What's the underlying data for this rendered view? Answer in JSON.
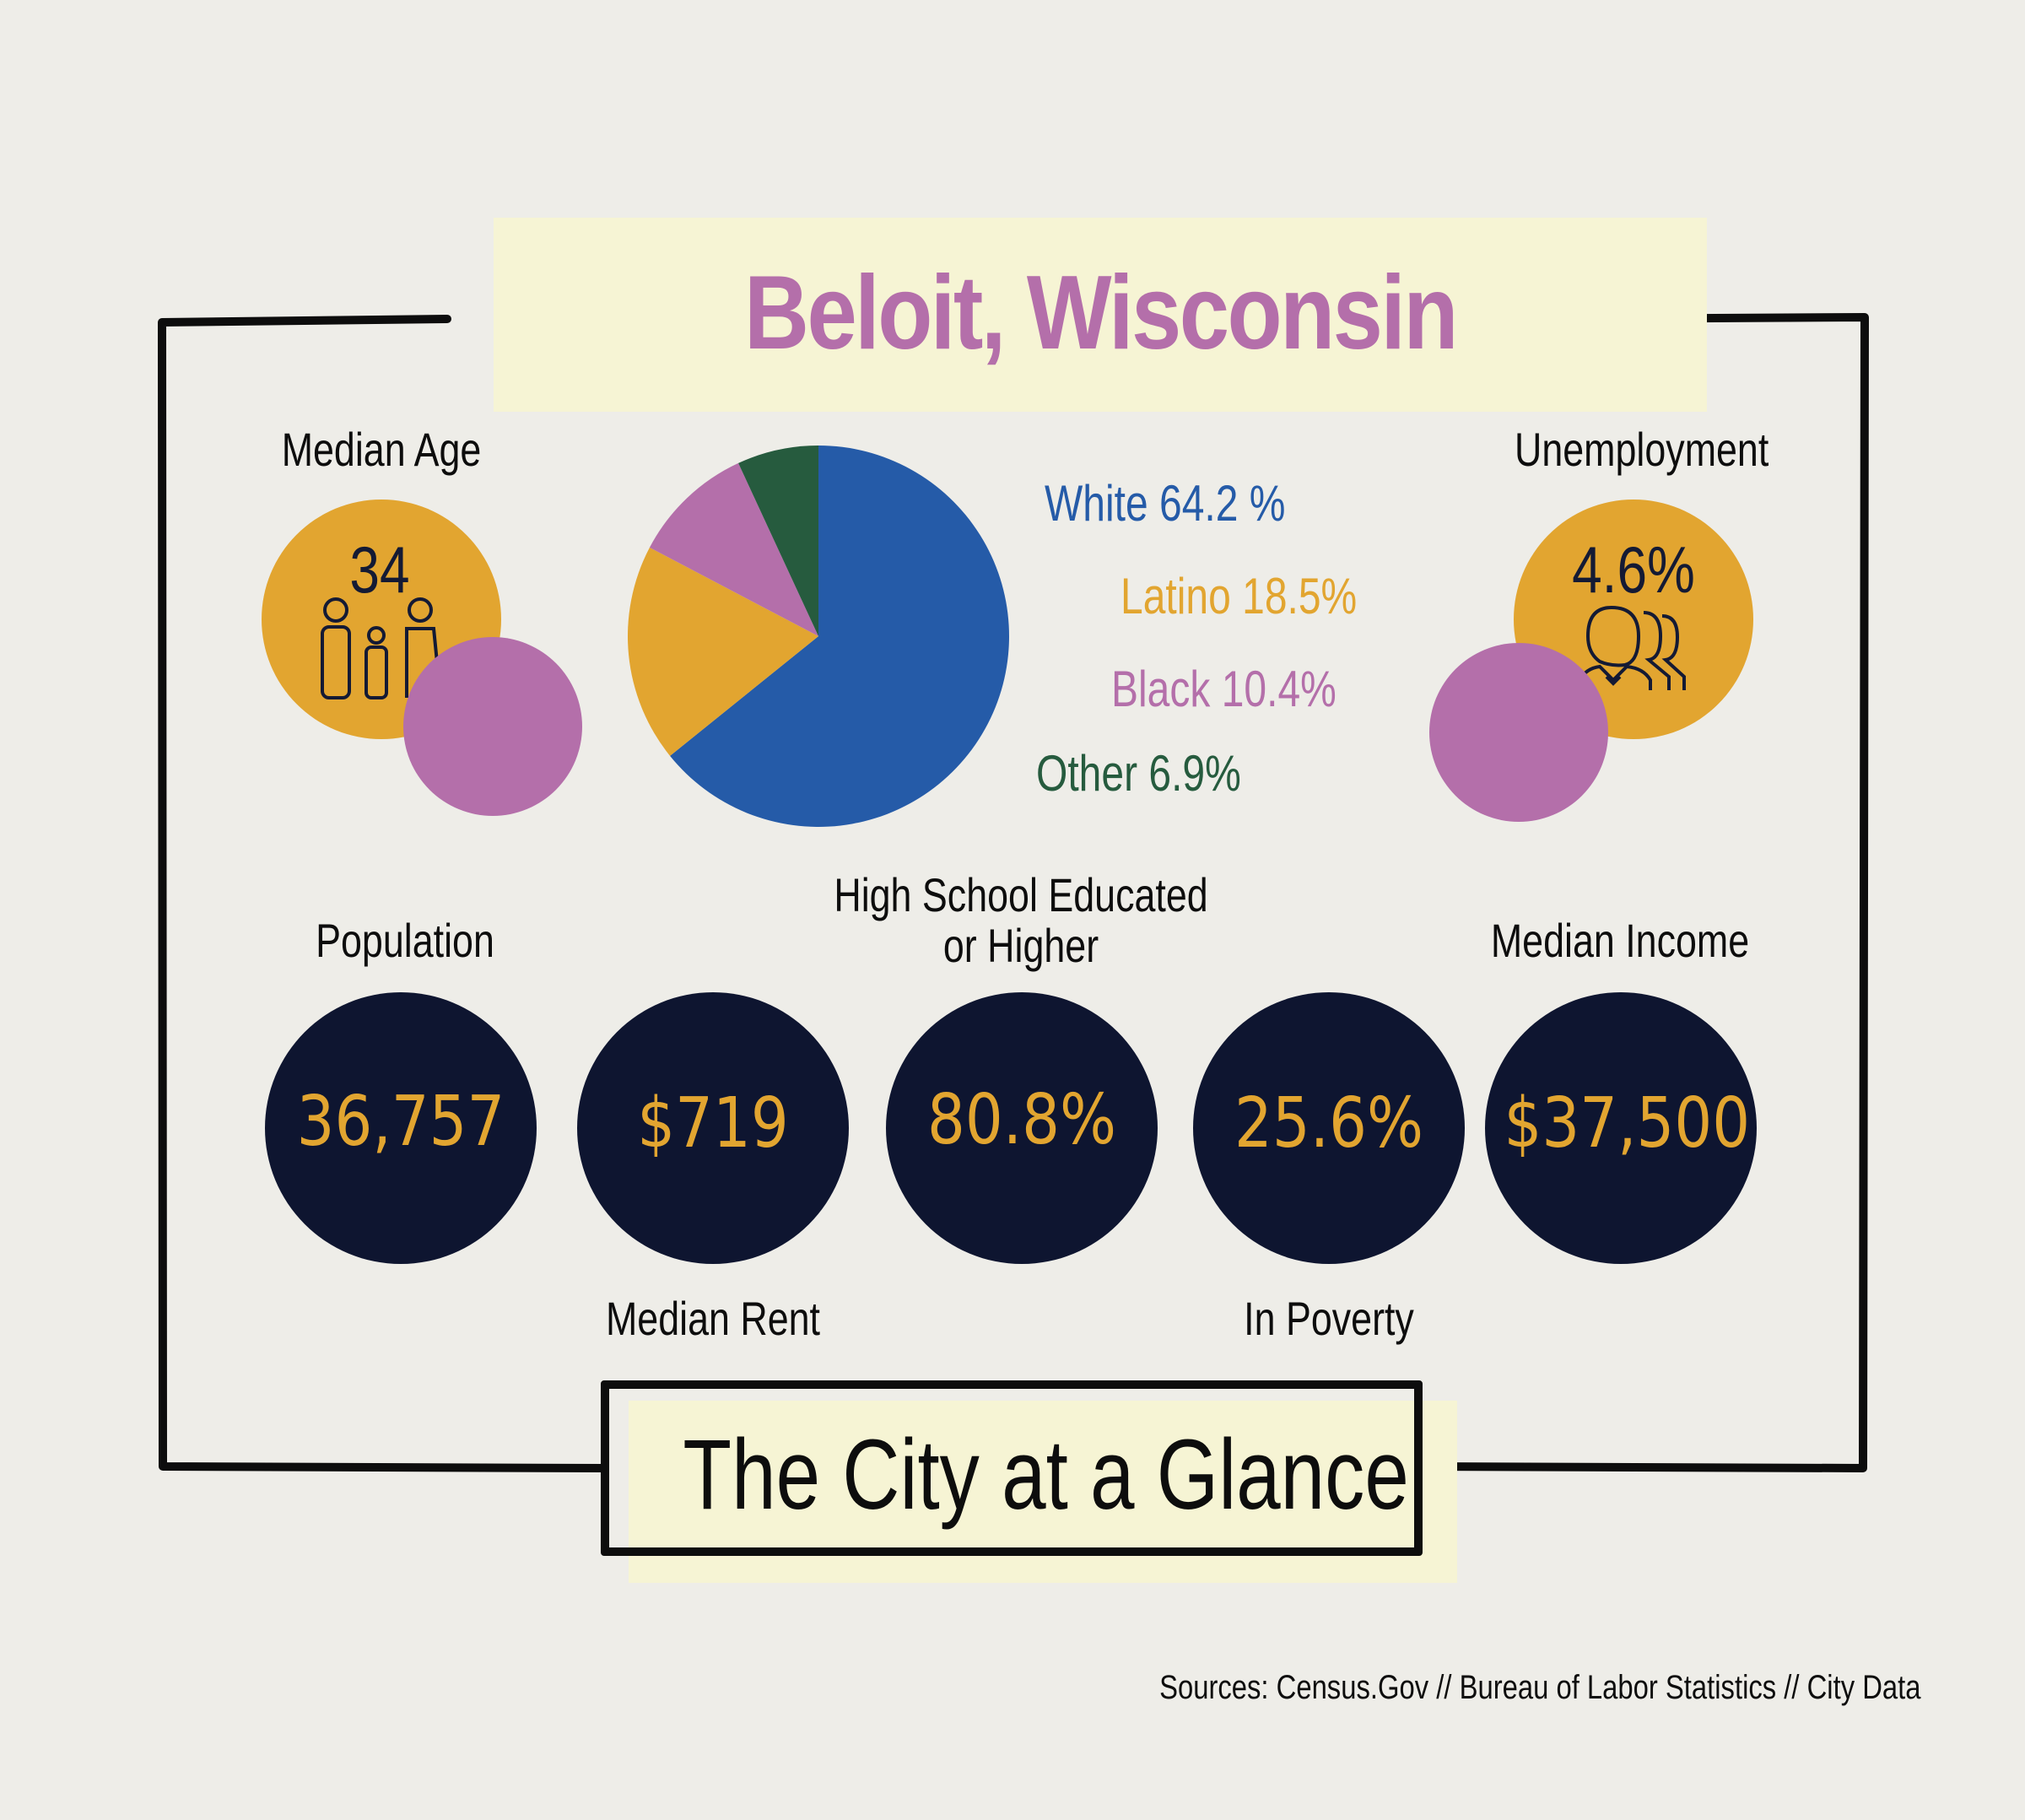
{
  "title": "Beloit, Wisconsin",
  "median_age": {
    "label": "Median Age",
    "value": "34",
    "icon": "family-icon"
  },
  "unemployment": {
    "label": "Unemployment",
    "value": "4.6%",
    "icon": "workers-icon"
  },
  "stats": {
    "population": {
      "label": "Population",
      "value": "36,757"
    },
    "median_rent": {
      "label": "Median Rent",
      "value": "$719"
    },
    "education": {
      "label_line1": "High School Educated",
      "label_line2": "or Higher",
      "value": "80.8%"
    },
    "poverty": {
      "label": "In Poverty",
      "value": "25.6%"
    },
    "median_income": {
      "label": "Median Income",
      "value": "$37,500"
    }
  },
  "footer_title": "The City at a Glance",
  "sources": "Sources:  Census.Gov // Bureau of Labor Statistics // City Data",
  "colors": {
    "gold": "#e2a530",
    "pink": "#b46faa",
    "navy": "#0e1530",
    "blue": "#255ba8",
    "green": "#265b3e",
    "band": "#f6f4d4"
  },
  "chart_data": {
    "type": "pie",
    "slices": [
      {
        "name": "White",
        "value": 64.2,
        "label": "White 64.2 %",
        "color": "#255ba8"
      },
      {
        "name": "Latino",
        "value": 18.5,
        "label": "Latino 18.5%",
        "color": "#e2a530"
      },
      {
        "name": "Black",
        "value": 10.4,
        "label": "Black 10.4%",
        "color": "#b46faa"
      },
      {
        "name": "Other",
        "value": 6.9,
        "label": "Other 6.9%",
        "color": "#265b3e"
      }
    ]
  }
}
